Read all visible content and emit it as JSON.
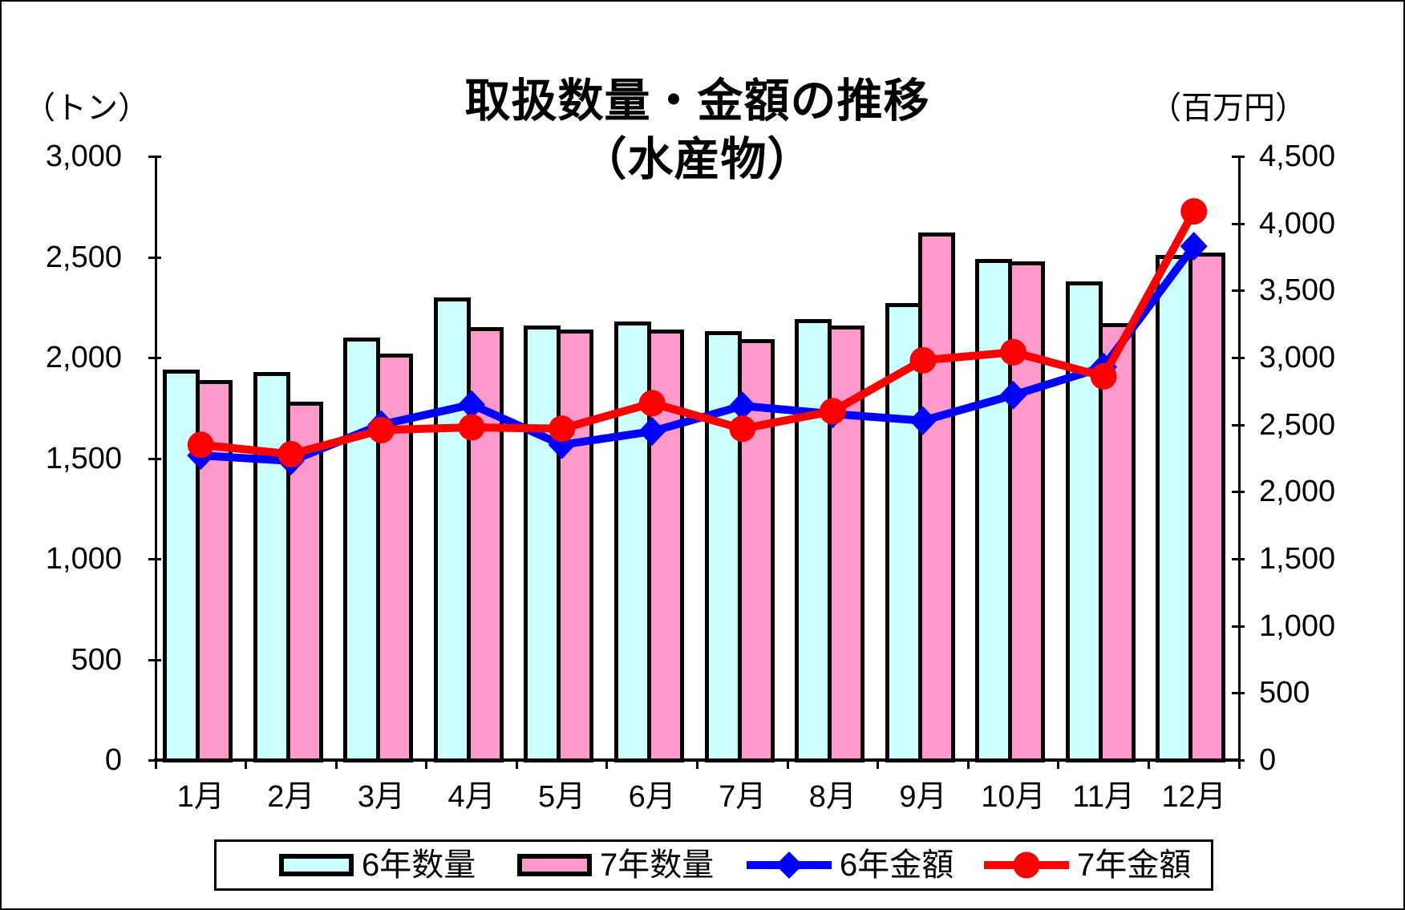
{
  "title": {
    "line1": "取扱数量・金額の推移",
    "line2": "（水産物）"
  },
  "axes": {
    "left_unit": "（トン）",
    "right_unit": "（百万円）",
    "left_tick_labels": [
      "3,000",
      "2,500",
      "2,000",
      "1,500",
      "1,000",
      "500",
      "0"
    ],
    "right_tick_labels": [
      "4,500",
      "4,000",
      "3,500",
      "3,000",
      "2,500",
      "2,000",
      "1,500",
      "1,000",
      "500",
      "0"
    ]
  },
  "chart_data": {
    "type": "combo (bar + line, dual axis)",
    "title": "取扱数量・金額の推移（水産物）",
    "categories": [
      "1月",
      "2月",
      "3月",
      "4月",
      "5月",
      "6月",
      "7月",
      "8月",
      "9月",
      "10月",
      "11月",
      "12月"
    ],
    "series": [
      {
        "name": "6年数量",
        "type": "bar",
        "axis": "left",
        "color": "#CCFFFF",
        "marker": "none",
        "values": [
          1940,
          1930,
          2100,
          2300,
          2160,
          2180,
          2130,
          2190,
          2270,
          2490,
          2380,
          2510
        ]
      },
      {
        "name": "7年数量",
        "type": "bar",
        "axis": "left",
        "color": "#FF99CC",
        "marker": "none",
        "values": [
          1890,
          1780,
          2020,
          2150,
          2140,
          2140,
          2090,
          2160,
          2620,
          2480,
          2170,
          2520
        ]
      },
      {
        "name": "6年金額",
        "type": "line",
        "axis": "right",
        "color": "#0000FF",
        "marker": "diamond",
        "values": [
          2270,
          2230,
          2500,
          2650,
          2350,
          2450,
          2640,
          2580,
          2530,
          2720,
          2930,
          3830
        ]
      },
      {
        "name": "7年金額",
        "type": "line",
        "axis": "right",
        "color": "#FF0000",
        "marker": "circle",
        "values": [
          2350,
          2280,
          2460,
          2480,
          2470,
          2660,
          2470,
          2600,
          2980,
          3040,
          2860,
          4090
        ]
      }
    ],
    "left_axis": {
      "unit": "（トン）",
      "min": 0,
      "max": 3000,
      "step": 500
    },
    "right_axis": {
      "unit": "（百万円）",
      "min": 0,
      "max": 4500,
      "step": 500
    },
    "grid": false,
    "legend_position": "bottom",
    "outline_color": "#000000",
    "background": "#FFFFFF"
  },
  "legend": {
    "items": [
      "6年数量",
      "7年数量",
      "6年金額",
      "7年金額"
    ]
  }
}
